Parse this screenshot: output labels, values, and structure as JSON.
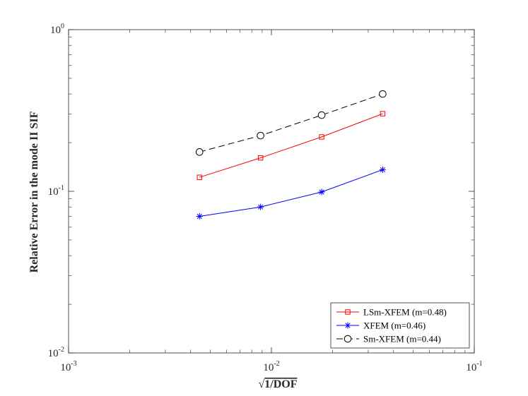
{
  "chart_data": {
    "type": "line",
    "xscale": "log",
    "yscale": "log",
    "xlim": [
      0.001,
      0.1
    ],
    "ylim": [
      0.01,
      1
    ],
    "xticks": [
      {
        "base": "10",
        "exp": "-3"
      },
      {
        "base": "10",
        "exp": "-2"
      },
      {
        "base": "10",
        "exp": "-1"
      }
    ],
    "yticks": [
      {
        "base": "10",
        "exp": "-2"
      },
      {
        "base": "10",
        "exp": "-1"
      },
      {
        "base": "10",
        "exp": "0"
      }
    ],
    "xlabel_prefix": "√",
    "xlabel_radicand": "1/DOF",
    "ylabel": "Relative Error in the mode II SIF",
    "grid": false,
    "legend_position": "bottom-right",
    "series": [
      {
        "name": "LSm-XFEM (m=0.48)",
        "color": "#ff0000",
        "marker": "square",
        "dash": "solid",
        "x": [
          0.00442,
          0.00884,
          0.01768,
          0.03536
        ],
        "y": [
          0.122,
          0.161,
          0.217,
          0.302
        ]
      },
      {
        "name": "XFEM (m=0.46)",
        "color": "#0000ff",
        "marker": "asterisk",
        "dash": "solid",
        "x": [
          0.00442,
          0.00884,
          0.01768,
          0.03536
        ],
        "y": [
          0.07,
          0.08,
          0.099,
          0.136
        ]
      },
      {
        "name": "Sm-XFEM (m=0.44)",
        "color": "#000000",
        "marker": "circle",
        "dash": "dashed",
        "x": [
          0.00442,
          0.00884,
          0.01768,
          0.03536
        ],
        "y": [
          0.175,
          0.221,
          0.296,
          0.4
        ]
      }
    ]
  }
}
